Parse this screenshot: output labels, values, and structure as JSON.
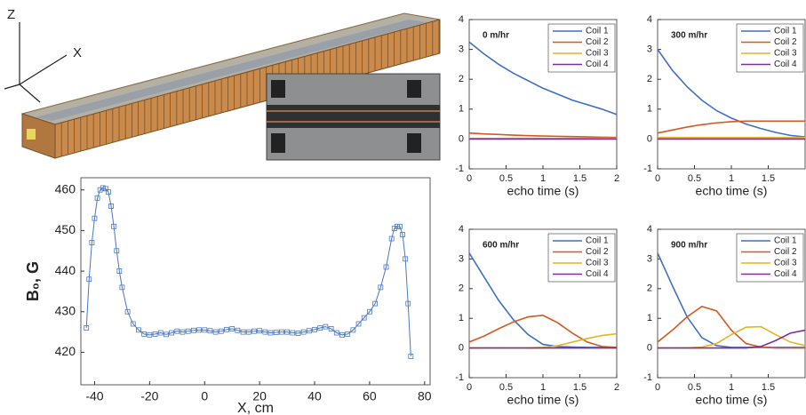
{
  "illustration": {
    "axis_labels": [
      "Z",
      "X"
    ]
  },
  "chart_data": [
    {
      "type": "line",
      "xlabel": "X, cm",
      "ylabel": "B₀, G",
      "marker": "square",
      "xlim": [
        -45,
        82
      ],
      "xticks": [
        -40,
        -20,
        0,
        20,
        40,
        60,
        80
      ],
      "ylim": [
        412,
        463
      ],
      "yticks": [
        420,
        430,
        440,
        450,
        460
      ],
      "x": [
        -43,
        -42,
        -41,
        -40,
        -39,
        -38,
        -37,
        -36,
        -35,
        -34,
        -33,
        -32,
        -31,
        -30,
        -28,
        -26,
        -24,
        -22,
        -20,
        -18,
        -16,
        -14,
        -12,
        -10,
        -8,
        -6,
        -4,
        -2,
        0,
        2,
        4,
        6,
        8,
        10,
        12,
        14,
        16,
        18,
        20,
        22,
        24,
        26,
        28,
        30,
        32,
        34,
        36,
        38,
        40,
        42,
        44,
        46,
        48,
        50,
        52,
        54,
        56,
        58,
        60,
        62,
        64,
        66,
        68,
        69,
        70,
        71,
        72,
        73,
        74,
        75
      ],
      "series": [
        {
          "color": "#4a78c2",
          "values": [
            426,
            438,
            447,
            453,
            458,
            460,
            460.5,
            460.3,
            459.5,
            456,
            451,
            445,
            440,
            436,
            430,
            427,
            425.5,
            424.5,
            424.3,
            424.5,
            424.8,
            424.4,
            424.8,
            425.2,
            425,
            425.2,
            425.4,
            425.5,
            425.5,
            425.3,
            425,
            425.2,
            425.6,
            425.8,
            425.4,
            425,
            425,
            425.2,
            425.3,
            425,
            424.8,
            424.9,
            425,
            425,
            424.8,
            424.7,
            425,
            425.3,
            425.6,
            426,
            426.3,
            425.8,
            424.8,
            424.3,
            424.5,
            425.5,
            427,
            428.5,
            430,
            432,
            436,
            441,
            448,
            450.5,
            451,
            451,
            449,
            443,
            432,
            419
          ]
        }
      ]
    },
    {
      "type": "line",
      "annotation": "0 m/hr",
      "xlabel": "echo time (s)",
      "xlim": [
        0,
        2
      ],
      "xticks": [
        0,
        0.5,
        1,
        1.5,
        2
      ],
      "ylim": [
        -1,
        4
      ],
      "yticks": [
        -1,
        0,
        1,
        2,
        3,
        4
      ],
      "x": [
        0,
        0.2,
        0.4,
        0.6,
        0.8,
        1,
        1.2,
        1.4,
        1.6,
        1.8,
        2
      ],
      "series": [
        {
          "name": "Coil 1",
          "color": "#3f6fc6",
          "values": [
            3.25,
            2.85,
            2.5,
            2.2,
            1.95,
            1.7,
            1.5,
            1.3,
            1.15,
            1.0,
            0.82
          ]
        },
        {
          "name": "Coil 2",
          "color": "#d4581f",
          "values": [
            0.2,
            0.17,
            0.15,
            0.13,
            0.11,
            0.1,
            0.09,
            0.08,
            0.07,
            0.06,
            0.05
          ]
        },
        {
          "name": "Coil 3",
          "color": "#e6b323",
          "values": [
            0.02,
            0.02,
            0.02,
            0.02,
            0.02,
            0.02,
            0.02,
            0.02,
            0.02,
            0.02,
            0.02
          ]
        },
        {
          "name": "Coil 4",
          "color": "#7b2f8e",
          "values": [
            0,
            0,
            0,
            0,
            0,
            0,
            0,
            0,
            0,
            0,
            0
          ]
        }
      ]
    },
    {
      "type": "line",
      "annotation": "300 m/hr",
      "xlabel": "echo time (s)",
      "xlim": [
        0,
        2
      ],
      "xticks": [
        0,
        0.5,
        1,
        1.5
      ],
      "ylim": [
        -1,
        4
      ],
      "yticks": [
        -1,
        0,
        1,
        2,
        3,
        4
      ],
      "x": [
        0,
        0.2,
        0.4,
        0.6,
        0.8,
        1,
        1.2,
        1.4,
        1.6,
        1.8,
        2
      ],
      "series": [
        {
          "name": "Coil 1",
          "color": "#3f6fc6",
          "values": [
            3.0,
            2.3,
            1.75,
            1.3,
            0.95,
            0.7,
            0.5,
            0.35,
            0.22,
            0.12,
            0.07
          ]
        },
        {
          "name": "Coil 2",
          "color": "#d4581f",
          "values": [
            0.2,
            0.3,
            0.4,
            0.48,
            0.54,
            0.58,
            0.6,
            0.6,
            0.6,
            0.6,
            0.6
          ]
        },
        {
          "name": "Coil 3",
          "color": "#e6b323",
          "values": [
            0.05,
            0.05,
            0.05,
            0.05,
            0.05,
            0.05,
            0.05,
            0.05,
            0.05,
            0.05,
            0.05
          ]
        },
        {
          "name": "Coil 4",
          "color": "#7b2f8e",
          "values": [
            0,
            0,
            0,
            0,
            0,
            0,
            0,
            0,
            0,
            0,
            0
          ]
        }
      ]
    },
    {
      "type": "line",
      "annotation": "600 m/hr",
      "xlabel": "echo time (s)",
      "xlim": [
        0,
        2
      ],
      "xticks": [
        0,
        0.5,
        1,
        1.5,
        2
      ],
      "ylim": [
        -1,
        4
      ],
      "yticks": [
        -1,
        0,
        1,
        2,
        3,
        4
      ],
      "x": [
        0,
        0.2,
        0.4,
        0.6,
        0.8,
        1,
        1.2,
        1.4,
        1.6,
        1.8,
        2
      ],
      "series": [
        {
          "name": "Coil 1",
          "color": "#3f6fc6",
          "values": [
            3.2,
            2.4,
            1.6,
            0.95,
            0.45,
            0.12,
            0.05,
            0.03,
            0.02,
            0.02,
            0.02
          ]
        },
        {
          "name": "Coil 2",
          "color": "#d4581f",
          "values": [
            0.2,
            0.4,
            0.65,
            0.88,
            1.05,
            1.1,
            0.85,
            0.5,
            0.2,
            0.05,
            0.02
          ]
        },
        {
          "name": "Coil 3",
          "color": "#e6b323",
          "values": [
            0,
            0,
            0,
            0,
            0,
            0.02,
            0.08,
            0.2,
            0.32,
            0.42,
            0.48
          ]
        },
        {
          "name": "Coil 4",
          "color": "#7b2f8e",
          "values": [
            0,
            0,
            0,
            0,
            0,
            0,
            0,
            0,
            0,
            0,
            0
          ]
        }
      ]
    },
    {
      "type": "line",
      "annotation": "900 m/hr",
      "xlabel": "echo time (s)",
      "xlim": [
        0,
        2
      ],
      "xticks": [
        0,
        0.5,
        1,
        1.5
      ],
      "ylim": [
        -1,
        4
      ],
      "yticks": [
        -1,
        0,
        1,
        2,
        3,
        4
      ],
      "x": [
        0,
        0.2,
        0.4,
        0.6,
        0.8,
        1,
        1.2,
        1.4,
        1.6,
        1.8,
        2
      ],
      "series": [
        {
          "name": "Coil 1",
          "color": "#3f6fc6",
          "values": [
            3.2,
            2.1,
            1.05,
            0.35,
            0.08,
            0.02,
            0.02,
            0.02,
            0.02,
            0.02,
            0.02
          ]
        },
        {
          "name": "Coil 2",
          "color": "#d4581f",
          "values": [
            0.2,
            0.6,
            1.05,
            1.4,
            1.25,
            0.6,
            0.15,
            0.03,
            0,
            0,
            0
          ]
        },
        {
          "name": "Coil 3",
          "color": "#e6b323",
          "values": [
            0,
            0,
            0,
            0.03,
            0.15,
            0.45,
            0.7,
            0.72,
            0.45,
            0.2,
            0.08
          ]
        },
        {
          "name": "Coil 4",
          "color": "#7b2f8e",
          "values": [
            0,
            0,
            0,
            0,
            0,
            0,
            0,
            0.05,
            0.25,
            0.5,
            0.6
          ]
        }
      ]
    }
  ]
}
